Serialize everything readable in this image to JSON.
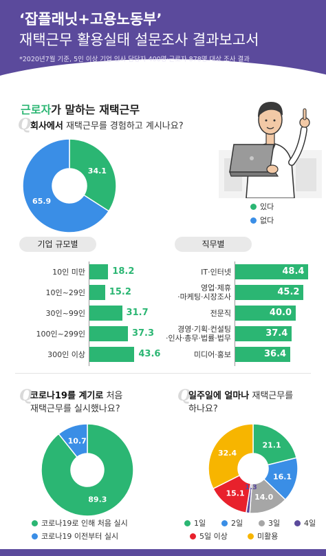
{
  "header": {
    "title_line1": "‘잡플래닛+고용노동부’",
    "title_line2": "재택근무 활용실태 설문조사 결과보고서",
    "note": "*2020년7월 기준, 5인 이상 기업 인사 담당자 400명·근로자 878명 대상 조사 결과"
  },
  "section": {
    "title_highlight": "근로자",
    "title_rest": "가 말하는 재택근무"
  },
  "colors": {
    "green": "#2bb673",
    "blue": "#3a8ee6",
    "gray": "#a6a6a6",
    "orange": "#f7b500",
    "purple": "#5b4a9c",
    "red": "#e8212c"
  },
  "icons": {
    "question": "Q",
    "person": "person-with-laptop-illustration"
  },
  "q1": {
    "bold": "회사에서",
    "rest": " 재택근무를 경험하고 계시나요?"
  },
  "q2": {
    "bold": "코로나19를 계기로",
    "rest_line1": " 처음",
    "line2": "재택근무를 실시했나요?"
  },
  "q3": {
    "bold": "일주일에 얼마나",
    "rest_line1": " 재택근무를",
    "line2": "하나요?"
  },
  "chart_data": [
    {
      "type": "pie",
      "labels": [
        "있다",
        "없다"
      ],
      "values": [
        34.1,
        65.9
      ],
      "colors": [
        "#2bb673",
        "#3a8ee6"
      ],
      "legend_position": "right"
    },
    {
      "type": "bar",
      "title": "기업 규모별",
      "categories": [
        "10인 미만",
        "10인~29인",
        "30인~99인",
        "100인~299인",
        "300인 이상"
      ],
      "values": [
        18.2,
        15.2,
        31.7,
        37.3,
        43.6
      ],
      "value_labels": [
        "18.2",
        "15.2",
        "31.7",
        "37.3",
        "43.6"
      ],
      "xlim": [
        0,
        50
      ],
      "grid": false
    },
    {
      "type": "bar",
      "title": "직무별",
      "categories": [
        [
          "IT·인터넷"
        ],
        [
          "영업·제휴",
          "·마케팅·시장조사"
        ],
        [
          "전문직"
        ],
        [
          "경영·기획·컨설팅",
          "·인사·총무·법률·법무"
        ],
        [
          "미디어·홍보"
        ]
      ],
      "values": [
        48.4,
        45.2,
        40.0,
        37.4,
        36.4
      ],
      "value_labels": [
        "48.4",
        "45.2",
        "40.0",
        "37.4",
        "36.4"
      ],
      "xlim": [
        0,
        50
      ],
      "grid": false
    },
    {
      "type": "pie",
      "labels": [
        "코로나19로 인해 처음 실시",
        "코로나19 이전부터 실시"
      ],
      "values": [
        89.3,
        10.7
      ],
      "colors": [
        "#2bb673",
        "#3a8ee6"
      ],
      "legend_position": "bottom"
    },
    {
      "type": "pie",
      "labels": [
        "1일",
        "2일",
        "3일",
        "4일",
        "5일 이상",
        "미활용"
      ],
      "values": [
        21.1,
        16.1,
        14.0,
        1.3,
        15.1,
        32.4
      ],
      "colors": [
        "#2bb673",
        "#3a8ee6",
        "#a6a6a6",
        "#5b4a9c",
        "#e8212c",
        "#f7b500"
      ],
      "legend_position": "bottom"
    }
  ]
}
